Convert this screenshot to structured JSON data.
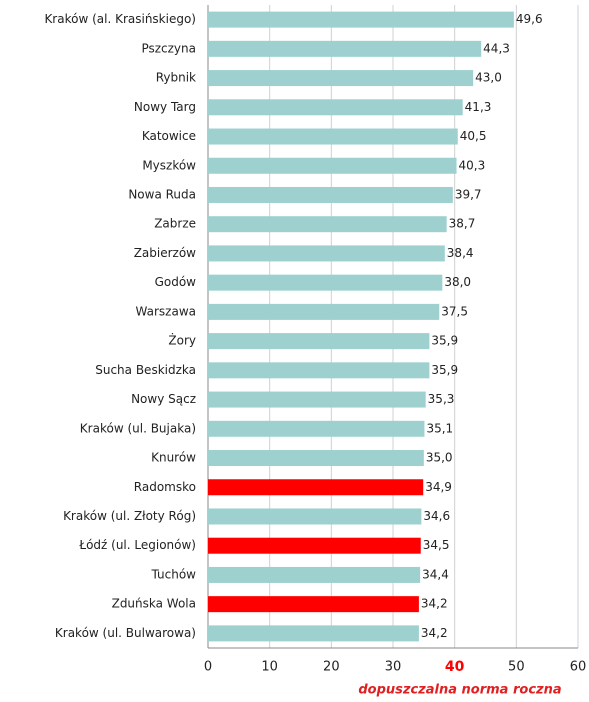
{
  "chart_data": {
    "type": "bar",
    "orientation": "horizontal",
    "categories": [
      "Kraków (al. Krasińskiego)",
      "Pszczyna",
      "Rybnik",
      "Nowy Targ",
      "Katowice",
      "Myszków",
      "Nowa Ruda",
      "Zabrze",
      "Zabierzów",
      "Godów",
      "Warszawa",
      "Żory",
      "Sucha Beskidzka",
      "Nowy Sącz",
      "Kraków (ul. Bujaka)",
      "Knurów",
      "Radomsko",
      "Kraków (ul. Złoty Róg)",
      "Łódź (ul. Legionów)",
      "Tuchów",
      "Zduńska Wola",
      "Kraków (ul. Bulwarowa)"
    ],
    "values": [
      49.6,
      44.3,
      43.0,
      41.3,
      40.5,
      40.3,
      39.7,
      38.7,
      38.4,
      38.0,
      37.5,
      35.9,
      35.9,
      35.3,
      35.1,
      35.0,
      34.9,
      34.6,
      34.5,
      34.4,
      34.2,
      34.2
    ],
    "value_labels": [
      "49,6",
      "44,3",
      "43,0",
      "41,3",
      "40,5",
      "40,3",
      "39,7",
      "38,7",
      "38,4",
      "38,0",
      "37,5",
      "35,9",
      "35,9",
      "35,3",
      "35,1",
      "35,0",
      "34,9",
      "34,6",
      "34,5",
      "34,4",
      "34,2",
      "34,2"
    ],
    "colors": [
      "#9dd0ce",
      "#9dd0ce",
      "#9dd0ce",
      "#9dd0ce",
      "#9dd0ce",
      "#9dd0ce",
      "#9dd0ce",
      "#9dd0ce",
      "#9dd0ce",
      "#9dd0ce",
      "#9dd0ce",
      "#9dd0ce",
      "#9dd0ce",
      "#9dd0ce",
      "#9dd0ce",
      "#9dd0ce",
      "#ff0000",
      "#9dd0ce",
      "#ff0000",
      "#9dd0ce",
      "#ff0000",
      "#9dd0ce"
    ],
    "xlim": [
      0,
      60
    ],
    "xticks": [
      0,
      10,
      20,
      30,
      40,
      50,
      60
    ],
    "xtick_colors": [
      "#222222",
      "#222222",
      "#222222",
      "#222222",
      "#ff0000",
      "#222222",
      "#222222"
    ],
    "grid": true,
    "annotation": "dopuszczalna norma roczna"
  }
}
